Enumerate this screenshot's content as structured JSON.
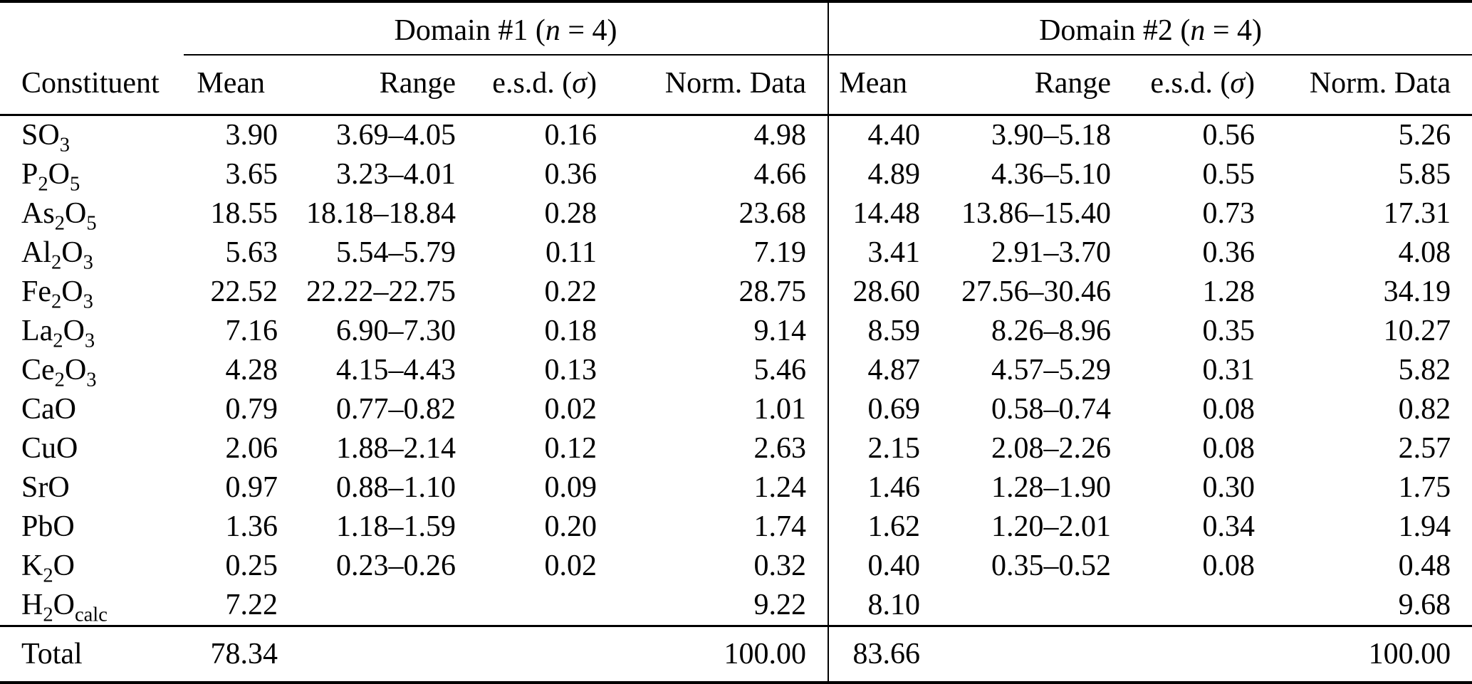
{
  "page": {
    "background_color": "#ffffff",
    "text_color": "#000000",
    "rule_color": "#000000"
  },
  "table": {
    "corner_label": "Constituent",
    "groups": [
      {
        "title": "Domain #1 (*n* = 4)",
        "columns": [
          "Mean",
          "Range",
          "e.s.d. (*σ*)",
          "Norm. Data"
        ]
      },
      {
        "title": "Domain #2 (*n* = 4)",
        "columns": [
          "Mean",
          "Range",
          "e.s.d. (*σ*)",
          "Norm. Data"
        ]
      }
    ],
    "rows": [
      [
        "SO_3",
        "3.90",
        "3.69–4.05",
        "0.16",
        "4.98",
        "4.40",
        "3.90–5.18",
        "0.56",
        "5.26"
      ],
      [
        "P_2O_5",
        "3.65",
        "3.23–4.01",
        "0.36",
        "4.66",
        "4.89",
        "4.36–5.10",
        "0.55",
        "5.85"
      ],
      [
        "As_2O_5",
        "18.55",
        "18.18–18.84",
        "0.28",
        "23.68",
        "14.48",
        "13.86–15.40",
        "0.73",
        "17.31"
      ],
      [
        "Al_2O_3",
        "5.63",
        "5.54–5.79",
        "0.11",
        "7.19",
        "3.41",
        "2.91–3.70",
        "0.36",
        "4.08"
      ],
      [
        "Fe_2O_3",
        "22.52",
        "22.22–22.75",
        "0.22",
        "28.75",
        "28.60",
        "27.56–30.46",
        "1.28",
        "34.19"
      ],
      [
        "La_2O_3",
        "7.16",
        "6.90–7.30",
        "0.18",
        "9.14",
        "8.59",
        "8.26–8.96",
        "0.35",
        "10.27"
      ],
      [
        "Ce_2O_3",
        "4.28",
        "4.15–4.43",
        "0.13",
        "5.46",
        "4.87",
        "4.57–5.29",
        "0.31",
        "5.82"
      ],
      [
        "CaO",
        "0.79",
        "0.77–0.82",
        "0.02",
        "1.01",
        "0.69",
        "0.58–0.74",
        "0.08",
        "0.82"
      ],
      [
        "CuO",
        "2.06",
        "1.88–2.14",
        "0.12",
        "2.63",
        "2.15",
        "2.08–2.26",
        "0.08",
        "2.57"
      ],
      [
        "SrO",
        "0.97",
        "0.88–1.10",
        "0.09",
        "1.24",
        "1.46",
        "1.28–1.90",
        "0.30",
        "1.75"
      ],
      [
        "PbO",
        "1.36",
        "1.18–1.59",
        "0.20",
        "1.74",
        "1.62",
        "1.20–2.01",
        "0.34",
        "1.94"
      ],
      [
        "K_2O",
        "0.25",
        "0.23–0.26",
        "0.02",
        "0.32",
        "0.40",
        "0.35–0.52",
        "0.08",
        "0.48"
      ],
      [
        "H_2O_calc",
        "7.22",
        "",
        "",
        "9.22",
        "8.10",
        "",
        "",
        "9.68"
      ]
    ],
    "total_row": [
      "Total",
      "78.34",
      "",
      "",
      "100.00",
      "83.66",
      "",
      "",
      "100.00"
    ]
  }
}
